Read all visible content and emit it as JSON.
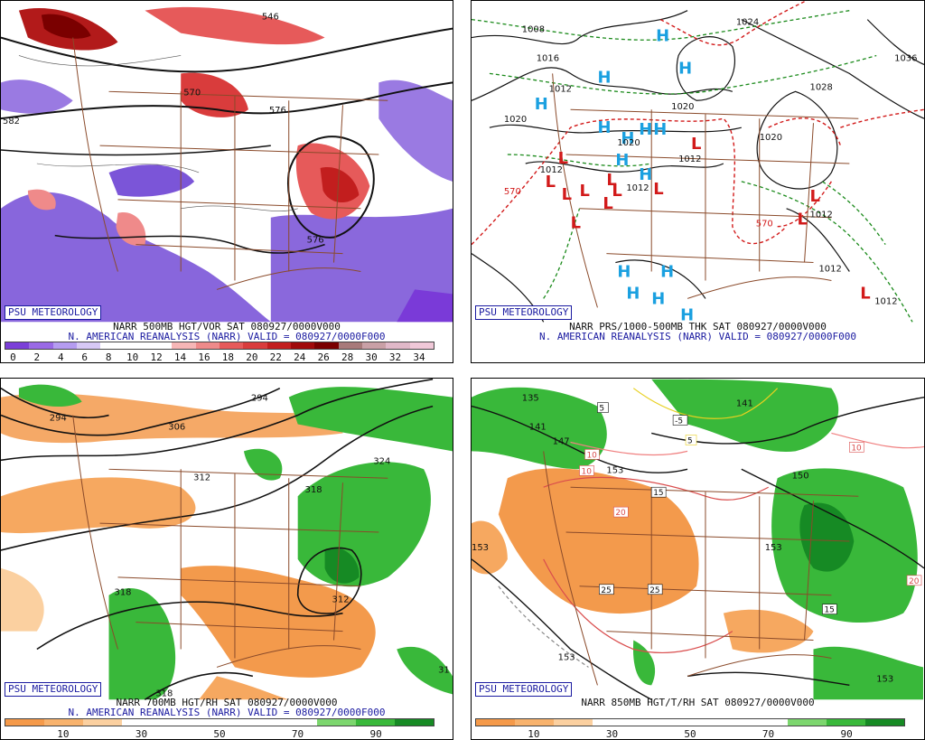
{
  "credit": "PSU METEOROLOGY",
  "panels": {
    "p1": {
      "line1": "NARR 500MB HGT/VOR SAT 080927/0000V000",
      "line2": "N. AMERICAN REANALYSIS (NARR) VALID = 080927/0000F000",
      "contour_labels": [
        "570",
        "546",
        "582",
        "576",
        "576"
      ],
      "colorbar": {
        "labels": [
          "0",
          "2",
          "4",
          "6",
          "8",
          "10",
          "12",
          "14",
          "16",
          "18",
          "20",
          "22",
          "24",
          "26",
          "28",
          "30",
          "32",
          "34"
        ],
        "colors": [
          "#7b3fd8",
          "#9a6ae6",
          "#b59cf0",
          "#d7c8f5",
          "#ffffff",
          "#ffffff",
          "#ffffff",
          "#f6b6b6",
          "#ef8a8a",
          "#e65a5a",
          "#d93c3c",
          "#c21e1e",
          "#a00a0a",
          "#7a0000",
          "#a87a7a",
          "#c9a0a6",
          "#e0b8c8",
          "#f0c8d8"
        ]
      }
    },
    "p2": {
      "line1": "NARR PRS/1000-500MB THK SAT 080927/0000V000",
      "line2": "N. AMERICAN REANALYSIS (NARR) VALID = 080927/0000F000",
      "high_symbol": "H",
      "low_symbol": "L",
      "isobar_labels": [
        "1008",
        "1016",
        "1012",
        "1020",
        "1036",
        "1028",
        "1020",
        "1024",
        "1020",
        "1012",
        "1012",
        "1012",
        "1012",
        "1020",
        "1012",
        "1012"
      ],
      "thickness_labels": [
        "570",
        "570"
      ]
    },
    "p3": {
      "line1": "NARR 700MB HGT/RH SAT 080927/0000V000",
      "line2": "N. AMERICAN REANALYSIS (NARR) VALID = 080927/0000F000",
      "contour_labels": [
        "294",
        "294",
        "306",
        "312",
        "318",
        "324",
        "318",
        "312",
        "318",
        "31"
      ],
      "colorbar": {
        "labels": [
          "10",
          "30",
          "50",
          "70",
          "90"
        ],
        "colors": [
          "#f59a4a",
          "#f8b36e",
          "#fbd0a0",
          "#ffffff",
          "#ffffff",
          "#ffffff",
          "#ffffff",
          "#ffffff",
          "#7cd66e",
          "#39b83a",
          "#168a24"
        ]
      }
    },
    "p4": {
      "line1": "NARR 850MB HGT/T/RH SAT 080927/0000V000",
      "contour_labels": [
        "135",
        "141",
        "147",
        "153",
        "141",
        "150",
        "153",
        "153",
        "153",
        "153"
      ],
      "temp_labels": [
        "5",
        "-5",
        "10",
        "10",
        "15",
        "20",
        "25",
        "25",
        "15",
        "20",
        "10",
        "5"
      ],
      "colorbar": {
        "labels": [
          "10",
          "30",
          "50",
          "70",
          "90"
        ],
        "colors": [
          "#f59a4a",
          "#f8b36e",
          "#fbd0a0",
          "#ffffff",
          "#ffffff",
          "#ffffff",
          "#ffffff",
          "#ffffff",
          "#7cd66e",
          "#39b83a",
          "#168a24"
        ]
      }
    }
  }
}
